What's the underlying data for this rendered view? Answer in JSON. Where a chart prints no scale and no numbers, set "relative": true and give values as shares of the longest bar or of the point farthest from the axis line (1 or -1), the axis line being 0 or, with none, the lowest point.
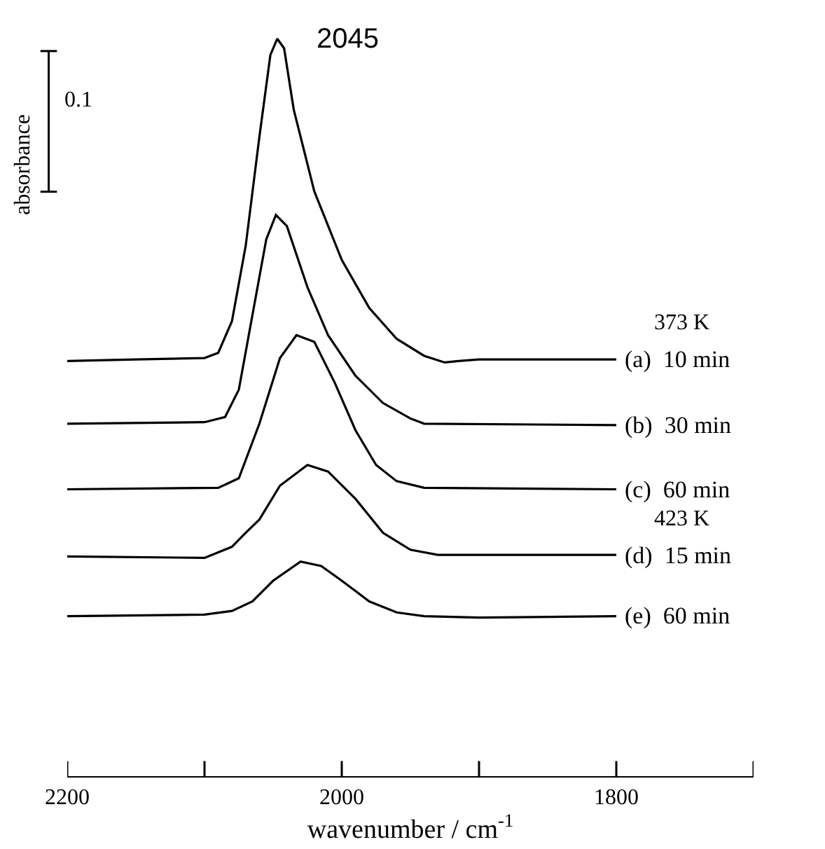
{
  "chart_data": {
    "type": "line",
    "relative": true,
    "xlabel": "wavenumber / cm$^{-1}$",
    "ylabel": "absorbance",
    "xlim": [
      2200,
      1700
    ],
    "xticks": [
      2200,
      {
        "value": 2100,
        "label": null
      },
      2000,
      {
        "value": 1900,
        "label": null
      },
      1800,
      {
        "value": 1700,
        "label": null
      }
    ],
    "legend": false,
    "marker": "none",
    "line_style": "solid",
    "annotations": [
      "2045",
      "0.1",
      "373 K",
      "423 K"
    ],
    "series": [
      {
        "name": "(a)  10 min",
        "color": "#000000",
        "x": [
          2200,
          2150,
          2100,
          2090,
          2080,
          2070,
          2060,
          2052,
          2047,
          2042,
          2035,
          2020,
          2000,
          1980,
          1960,
          1940,
          1925,
          1915,
          1900,
          1800
        ],
        "values": [
          0.563,
          0.565,
          0.567,
          0.574,
          0.617,
          0.719,
          0.867,
          0.978,
          1,
          0.987,
          0.904,
          0.793,
          0.7,
          0.635,
          0.593,
          0.57,
          0.561,
          0.563,
          0.565,
          0.565
        ]
      },
      {
        "name": "(b)  30 min",
        "color": "#000000",
        "x": [
          2200,
          2100,
          2085,
          2075,
          2065,
          2055,
          2048,
          2040,
          2025,
          2010,
          1990,
          1970,
          1950,
          1940,
          1800
        ],
        "values": [
          0.478,
          0.48,
          0.487,
          0.524,
          0.626,
          0.728,
          0.761,
          0.746,
          0.663,
          0.598,
          0.543,
          0.506,
          0.485,
          0.478,
          0.476
        ]
      },
      {
        "name": "(c)  60 min",
        "color": "#000000",
        "x": [
          2200,
          2090,
          2075,
          2060,
          2045,
          2033,
          2020,
          2005,
          1990,
          1975,
          1960,
          1940,
          1800
        ],
        "values": [
          0.389,
          0.391,
          0.404,
          0.478,
          0.567,
          0.598,
          0.589,
          0.533,
          0.469,
          0.422,
          0.4,
          0.391,
          0.389
        ]
      },
      {
        "name": "(d)  15 min",
        "color": "#000000",
        "x": [
          2200,
          2100,
          2080,
          2070,
          2060,
          2045,
          2025,
          2010,
          1990,
          1970,
          1950,
          1930,
          1800
        ],
        "values": [
          0.298,
          0.296,
          0.311,
          0.33,
          0.348,
          0.394,
          0.422,
          0.413,
          0.376,
          0.33,
          0.307,
          0.3,
          0.3
        ]
      },
      {
        "name": "(e)  60 min",
        "color": "#000000",
        "x": [
          2200,
          2100,
          2080,
          2065,
          2050,
          2030,
          2015,
          2000,
          1980,
          1960,
          1940,
          1900,
          1800
        ],
        "values": [
          0.217,
          0.219,
          0.224,
          0.237,
          0.265,
          0.291,
          0.285,
          0.265,
          0.237,
          0.222,
          0.217,
          0.215,
          0.217
        ]
      }
    ]
  }
}
